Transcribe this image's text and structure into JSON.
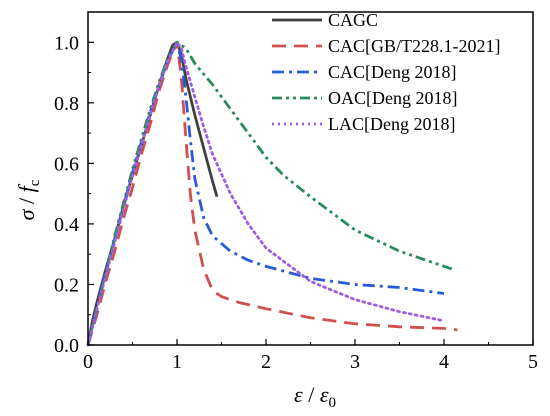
{
  "chart_data": {
    "type": "line",
    "xlabel": {
      "main": "ε",
      "sep": " / ",
      "sym": "ε",
      "sub": "0"
    },
    "ylabel": {
      "main": "σ",
      "sep": " / ",
      "sym": "f",
      "sub": "c"
    },
    "xlim": [
      0,
      5
    ],
    "ylim": [
      0,
      1.1
    ],
    "x_ticks": [
      "0",
      "1",
      "2",
      "3",
      "4",
      "5"
    ],
    "y_ticks": [
      "0.0",
      "0.2",
      "0.4",
      "0.6",
      "0.8",
      "1.0"
    ],
    "x_tick_values": [
      0,
      1,
      2,
      3,
      4,
      5
    ],
    "y_tick_values": [
      0,
      0.2,
      0.4,
      0.6,
      0.8,
      1.0
    ],
    "grid": false,
    "legend_position": "top-right",
    "series": [
      {
        "name": "CAGC",
        "color": "#404040",
        "dash": "solid",
        "points": [
          [
            0,
            0
          ],
          [
            0.05,
            0.08
          ],
          [
            0.1,
            0.14
          ],
          [
            0.2,
            0.25
          ],
          [
            0.3,
            0.35
          ],
          [
            0.4,
            0.46
          ],
          [
            0.5,
            0.56
          ],
          [
            0.6,
            0.66
          ],
          [
            0.7,
            0.76
          ],
          [
            0.8,
            0.86
          ],
          [
            0.9,
            0.95
          ],
          [
            0.95,
            0.99
          ],
          [
            1.0,
            1.0
          ],
          [
            1.05,
            0.96
          ],
          [
            1.1,
            0.88
          ],
          [
            1.2,
            0.76
          ],
          [
            1.3,
            0.65
          ],
          [
            1.4,
            0.54
          ],
          [
            1.45,
            0.49
          ]
        ]
      },
      {
        "name": "CAC[GB/T228.1-2021]",
        "color": "#d05050",
        "dash": "long-dash",
        "points": [
          [
            0,
            0
          ],
          [
            0.1,
            0.1
          ],
          [
            0.2,
            0.21
          ],
          [
            0.3,
            0.31
          ],
          [
            0.4,
            0.42
          ],
          [
            0.5,
            0.52
          ],
          [
            0.6,
            0.63
          ],
          [
            0.7,
            0.73
          ],
          [
            0.8,
            0.84
          ],
          [
            0.9,
            0.93
          ],
          [
            1.0,
            1.0
          ],
          [
            1.05,
            0.88
          ],
          [
            1.1,
            0.68
          ],
          [
            1.15,
            0.5
          ],
          [
            1.2,
            0.38
          ],
          [
            1.3,
            0.25
          ],
          [
            1.4,
            0.18
          ],
          [
            1.5,
            0.16
          ],
          [
            1.7,
            0.14
          ],
          [
            2.0,
            0.12
          ],
          [
            2.5,
            0.09
          ],
          [
            3.0,
            0.07
          ],
          [
            3.5,
            0.06
          ],
          [
            4.0,
            0.055
          ],
          [
            4.15,
            0.05
          ]
        ]
      },
      {
        "name": "CAC[Deng 2018]",
        "color": "#2a5bd7",
        "dash": "dash-dot",
        "points": [
          [
            0,
            0
          ],
          [
            0.1,
            0.12
          ],
          [
            0.2,
            0.24
          ],
          [
            0.3,
            0.35
          ],
          [
            0.4,
            0.46
          ],
          [
            0.5,
            0.57
          ],
          [
            0.6,
            0.67
          ],
          [
            0.7,
            0.77
          ],
          [
            0.8,
            0.86
          ],
          [
            0.9,
            0.94
          ],
          [
            1.0,
            1.0
          ],
          [
            1.05,
            0.94
          ],
          [
            1.1,
            0.82
          ],
          [
            1.15,
            0.68
          ],
          [
            1.2,
            0.55
          ],
          [
            1.3,
            0.42
          ],
          [
            1.4,
            0.36
          ],
          [
            1.6,
            0.31
          ],
          [
            1.8,
            0.28
          ],
          [
            2.0,
            0.26
          ],
          [
            2.5,
            0.22
          ],
          [
            3.0,
            0.2
          ],
          [
            3.5,
            0.19
          ],
          [
            4.0,
            0.17
          ]
        ]
      },
      {
        "name": "OAC[Deng 2018]",
        "color": "#2a8a5a",
        "dash": "dash-dot-dot",
        "points": [
          [
            0,
            0
          ],
          [
            0.1,
            0.12
          ],
          [
            0.2,
            0.24
          ],
          [
            0.3,
            0.36
          ],
          [
            0.4,
            0.47
          ],
          [
            0.5,
            0.58
          ],
          [
            0.6,
            0.68
          ],
          [
            0.7,
            0.78
          ],
          [
            0.8,
            0.87
          ],
          [
            0.9,
            0.95
          ],
          [
            1.0,
            1.0
          ],
          [
            1.1,
            0.98
          ],
          [
            1.2,
            0.93
          ],
          [
            1.4,
            0.86
          ],
          [
            1.6,
            0.78
          ],
          [
            1.8,
            0.7
          ],
          [
            2.0,
            0.62
          ],
          [
            2.2,
            0.56
          ],
          [
            2.5,
            0.49
          ],
          [
            3.0,
            0.38
          ],
          [
            3.5,
            0.31
          ],
          [
            4.0,
            0.26
          ],
          [
            4.1,
            0.25
          ]
        ]
      },
      {
        "name": "LAC[Deng 2018]",
        "color": "#9b5fe0",
        "dash": "dot",
        "points": [
          [
            0,
            0
          ],
          [
            0.1,
            0.12
          ],
          [
            0.2,
            0.23
          ],
          [
            0.3,
            0.34
          ],
          [
            0.4,
            0.45
          ],
          [
            0.5,
            0.56
          ],
          [
            0.6,
            0.66
          ],
          [
            0.7,
            0.76
          ],
          [
            0.8,
            0.86
          ],
          [
            0.9,
            0.94
          ],
          [
            1.0,
            1.0
          ],
          [
            1.05,
            0.98
          ],
          [
            1.1,
            0.92
          ],
          [
            1.2,
            0.82
          ],
          [
            1.3,
            0.72
          ],
          [
            1.4,
            0.63
          ],
          [
            1.6,
            0.5
          ],
          [
            1.8,
            0.4
          ],
          [
            2.0,
            0.32
          ],
          [
            2.5,
            0.21
          ],
          [
            3.0,
            0.15
          ],
          [
            3.5,
            0.11
          ],
          [
            4.0,
            0.08
          ]
        ]
      }
    ]
  }
}
